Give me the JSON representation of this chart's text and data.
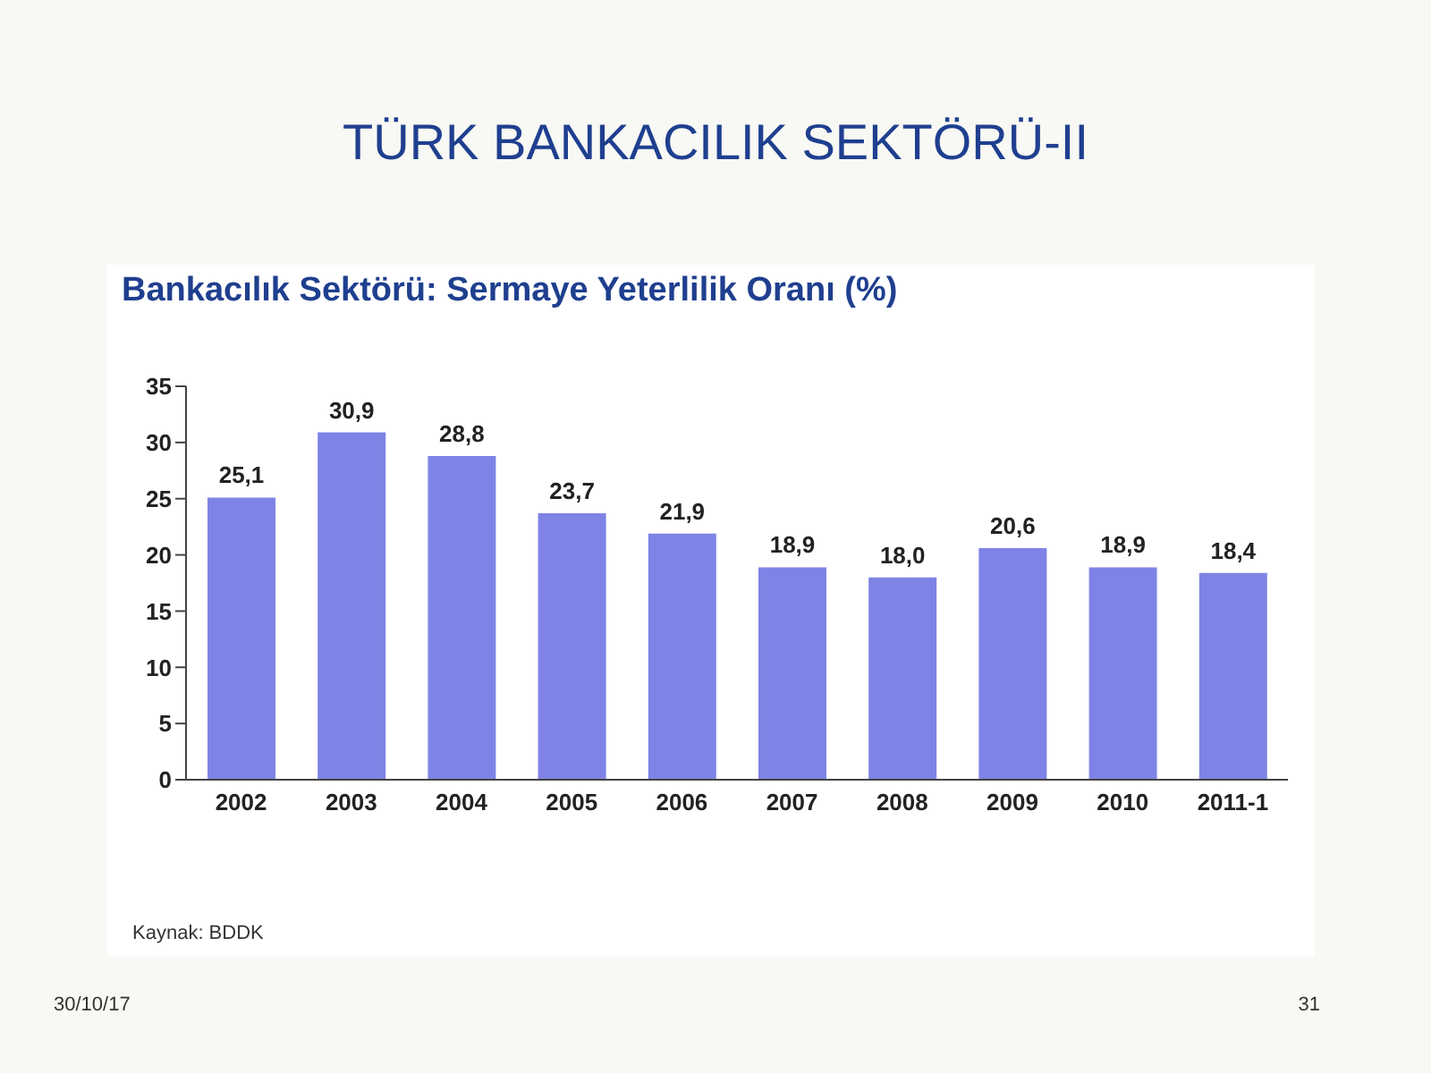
{
  "chart_data": {
    "type": "bar",
    "title": "TÜRK BANKACILIK SEKTÖRÜ-II",
    "subtitle": "Bankacılık Sektörü: Sermaye Yeterlilik Oranı (%)",
    "categories": [
      "2002",
      "2003",
      "2004",
      "2005",
      "2006",
      "2007",
      "2008",
      "2009",
      "2010",
      "2011-1"
    ],
    "values": [
      25.1,
      30.9,
      28.8,
      23.7,
      21.9,
      18.9,
      18.0,
      20.6,
      18.9,
      18.4
    ],
    "value_labels": [
      "25,1",
      "30,9",
      "28,8",
      "23,7",
      "21,9",
      "18,9",
      "18,0",
      "20,6",
      "18,9",
      "18,4"
    ],
    "color": "#7f83e6",
    "ylim": [
      0,
      35
    ],
    "yticks": [
      0,
      5,
      10,
      15,
      20,
      25,
      30,
      35
    ],
    "grid": false,
    "legend": false,
    "annotations": [
      "Kaynak: BDDK",
      "30/10/17",
      "31"
    ]
  }
}
